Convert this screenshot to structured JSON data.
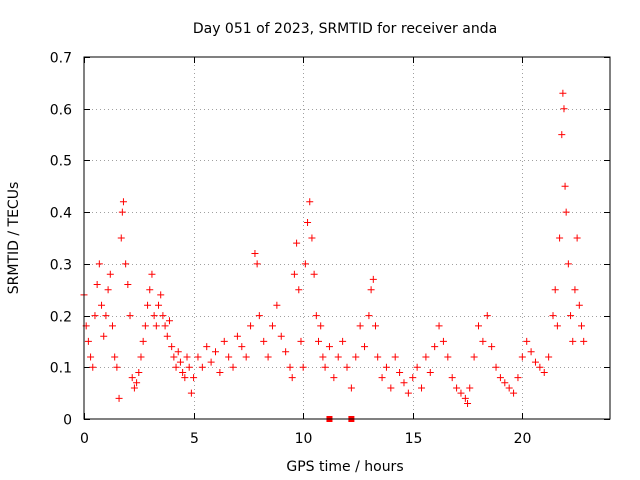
{
  "chart_data": {
    "type": "scatter",
    "title": "Day 051 of 2023, SRMTID for receiver anda",
    "xlabel": "GPS time / hours",
    "ylabel": "SRMTID / TECUs",
    "xlim": [
      0,
      24
    ],
    "ylim": [
      0,
      0.7
    ],
    "xticks": [
      0,
      5,
      10,
      15,
      20
    ],
    "xtick_labels": [
      "0",
      "5",
      "10",
      "15",
      "20"
    ],
    "yticks": [
      0,
      0.1,
      0.2,
      0.3,
      0.4,
      0.5,
      0.6,
      0.7
    ],
    "ytick_labels": [
      "0",
      "0.1",
      "0.2",
      "0.3",
      "0.4",
      "0.5",
      "0.6",
      "0.7"
    ],
    "grid": true,
    "marker": "+",
    "color": "#ff0000",
    "baseline_markers_x": [
      11.2,
      12.2
    ],
    "series": [
      {
        "name": "SRMTID",
        "points": [
          [
            0.0,
            0.24
          ],
          [
            0.1,
            0.18
          ],
          [
            0.2,
            0.15
          ],
          [
            0.3,
            0.12
          ],
          [
            0.4,
            0.1
          ],
          [
            0.5,
            0.2
          ],
          [
            0.6,
            0.26
          ],
          [
            0.7,
            0.3
          ],
          [
            0.8,
            0.22
          ],
          [
            0.9,
            0.16
          ],
          [
            1.0,
            0.2
          ],
          [
            1.1,
            0.25
          ],
          [
            1.2,
            0.28
          ],
          [
            1.3,
            0.18
          ],
          [
            1.4,
            0.12
          ],
          [
            1.5,
            0.1
          ],
          [
            1.6,
            0.04
          ],
          [
            1.7,
            0.35
          ],
          [
            1.75,
            0.4
          ],
          [
            1.8,
            0.42
          ],
          [
            1.9,
            0.3
          ],
          [
            2.0,
            0.26
          ],
          [
            2.1,
            0.2
          ],
          [
            2.2,
            0.08
          ],
          [
            2.3,
            0.06
          ],
          [
            2.4,
            0.07
          ],
          [
            2.5,
            0.09
          ],
          [
            2.6,
            0.12
          ],
          [
            2.7,
            0.15
          ],
          [
            2.8,
            0.18
          ],
          [
            2.9,
            0.22
          ],
          [
            3.0,
            0.25
          ],
          [
            3.1,
            0.28
          ],
          [
            3.2,
            0.2
          ],
          [
            3.3,
            0.18
          ],
          [
            3.4,
            0.22
          ],
          [
            3.5,
            0.24
          ],
          [
            3.6,
            0.2
          ],
          [
            3.7,
            0.18
          ],
          [
            3.8,
            0.16
          ],
          [
            3.9,
            0.19
          ],
          [
            4.0,
            0.14
          ],
          [
            4.1,
            0.12
          ],
          [
            4.2,
            0.1
          ],
          [
            4.3,
            0.13
          ],
          [
            4.4,
            0.11
          ],
          [
            4.5,
            0.09
          ],
          [
            4.6,
            0.08
          ],
          [
            4.7,
            0.12
          ],
          [
            4.8,
            0.1
          ],
          [
            4.9,
            0.05
          ],
          [
            5.0,
            0.08
          ],
          [
            5.2,
            0.12
          ],
          [
            5.4,
            0.1
          ],
          [
            5.6,
            0.14
          ],
          [
            5.8,
            0.11
          ],
          [
            6.0,
            0.13
          ],
          [
            6.2,
            0.09
          ],
          [
            6.4,
            0.15
          ],
          [
            6.6,
            0.12
          ],
          [
            6.8,
            0.1
          ],
          [
            7.0,
            0.16
          ],
          [
            7.2,
            0.14
          ],
          [
            7.4,
            0.12
          ],
          [
            7.6,
            0.18
          ],
          [
            7.8,
            0.32
          ],
          [
            7.9,
            0.3
          ],
          [
            8.0,
            0.2
          ],
          [
            8.2,
            0.15
          ],
          [
            8.4,
            0.12
          ],
          [
            8.6,
            0.18
          ],
          [
            8.8,
            0.22
          ],
          [
            9.0,
            0.16
          ],
          [
            9.2,
            0.13
          ],
          [
            9.4,
            0.1
          ],
          [
            9.5,
            0.08
          ],
          [
            9.6,
            0.28
          ],
          [
            9.7,
            0.34
          ],
          [
            9.8,
            0.25
          ],
          [
            9.9,
            0.15
          ],
          [
            10.0,
            0.1
          ],
          [
            10.1,
            0.3
          ],
          [
            10.2,
            0.38
          ],
          [
            10.3,
            0.42
          ],
          [
            10.4,
            0.35
          ],
          [
            10.5,
            0.28
          ],
          [
            10.6,
            0.2
          ],
          [
            10.7,
            0.15
          ],
          [
            10.8,
            0.18
          ],
          [
            10.9,
            0.12
          ],
          [
            11.0,
            0.1
          ],
          [
            11.2,
            0.14
          ],
          [
            11.4,
            0.08
          ],
          [
            11.6,
            0.12
          ],
          [
            11.8,
            0.15
          ],
          [
            12.0,
            0.1
          ],
          [
            12.2,
            0.06
          ],
          [
            12.4,
            0.12
          ],
          [
            12.6,
            0.18
          ],
          [
            12.8,
            0.14
          ],
          [
            13.0,
            0.2
          ],
          [
            13.1,
            0.25
          ],
          [
            13.2,
            0.27
          ],
          [
            13.3,
            0.18
          ],
          [
            13.4,
            0.12
          ],
          [
            13.6,
            0.08
          ],
          [
            13.8,
            0.1
          ],
          [
            14.0,
            0.06
          ],
          [
            14.2,
            0.12
          ],
          [
            14.4,
            0.09
          ],
          [
            14.6,
            0.07
          ],
          [
            14.8,
            0.05
          ],
          [
            15.0,
            0.08
          ],
          [
            15.2,
            0.1
          ],
          [
            15.4,
            0.06
          ],
          [
            15.6,
            0.12
          ],
          [
            15.8,
            0.09
          ],
          [
            16.0,
            0.14
          ],
          [
            16.2,
            0.18
          ],
          [
            16.4,
            0.15
          ],
          [
            16.6,
            0.12
          ],
          [
            16.8,
            0.08
          ],
          [
            17.0,
            0.06
          ],
          [
            17.2,
            0.05
          ],
          [
            17.4,
            0.04
          ],
          [
            17.5,
            0.03
          ],
          [
            17.6,
            0.06
          ],
          [
            17.8,
            0.12
          ],
          [
            18.0,
            0.18
          ],
          [
            18.2,
            0.15
          ],
          [
            18.4,
            0.2
          ],
          [
            18.6,
            0.14
          ],
          [
            18.8,
            0.1
          ],
          [
            19.0,
            0.08
          ],
          [
            19.2,
            0.07
          ],
          [
            19.4,
            0.06
          ],
          [
            19.6,
            0.05
          ],
          [
            19.8,
            0.08
          ],
          [
            20.0,
            0.12
          ],
          [
            20.2,
            0.15
          ],
          [
            20.4,
            0.13
          ],
          [
            20.6,
            0.11
          ],
          [
            20.8,
            0.1
          ],
          [
            21.0,
            0.09
          ],
          [
            21.2,
            0.12
          ],
          [
            21.4,
            0.2
          ],
          [
            21.5,
            0.25
          ],
          [
            21.6,
            0.18
          ],
          [
            21.7,
            0.35
          ],
          [
            21.8,
            0.55
          ],
          [
            21.85,
            0.63
          ],
          [
            21.9,
            0.6
          ],
          [
            21.95,
            0.45
          ],
          [
            22.0,
            0.4
          ],
          [
            22.1,
            0.3
          ],
          [
            22.2,
            0.2
          ],
          [
            22.3,
            0.15
          ],
          [
            22.4,
            0.25
          ],
          [
            22.5,
            0.35
          ],
          [
            22.6,
            0.22
          ],
          [
            22.7,
            0.18
          ],
          [
            22.8,
            0.15
          ]
        ]
      }
    ]
  }
}
